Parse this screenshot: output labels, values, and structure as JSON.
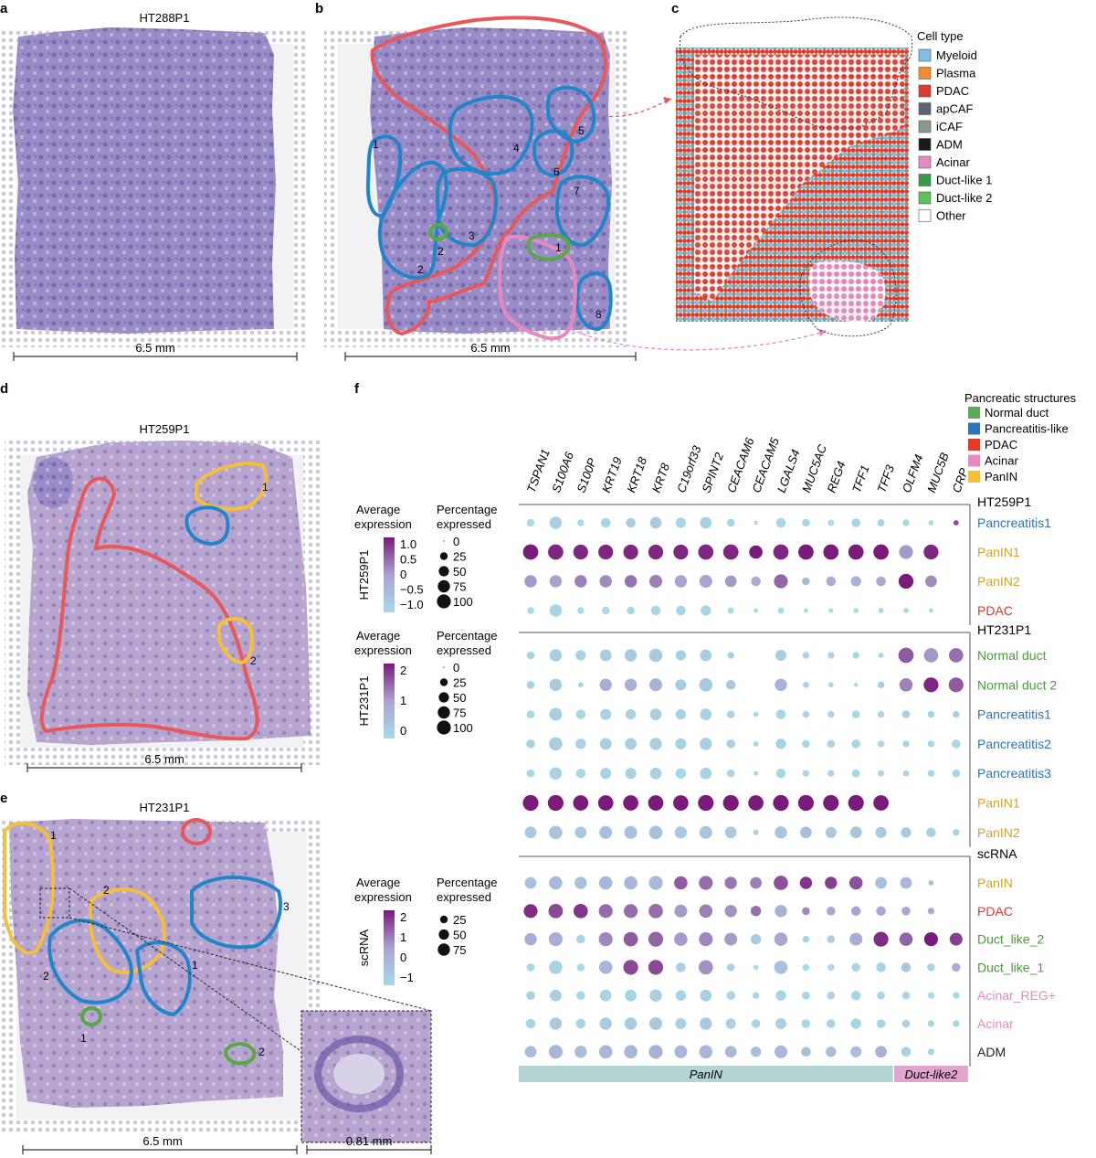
{
  "panels": {
    "a": {
      "letter": "a",
      "title": "HT288P1",
      "scale": "6.5 mm"
    },
    "b": {
      "letter": "b",
      "scale": "6.5 mm",
      "region_numbers": [
        "1",
        "2",
        "3",
        "4",
        "5",
        "6",
        "7",
        "8"
      ],
      "green_numbers": [
        "2",
        "1"
      ]
    },
    "c": {
      "letter": "c",
      "legend_title": "Cell type",
      "legend": [
        {
          "label": "Myeloid",
          "color": "#7fbfe3"
        },
        {
          "label": "Plasma",
          "color": "#f28a2e"
        },
        {
          "label": "PDAC",
          "color": "#e03a2a"
        },
        {
          "label": "apCAF",
          "color": "#5b6374"
        },
        {
          "label": "iCAF",
          "color": "#8a9a8a"
        },
        {
          "label": "ADM",
          "color": "#1a1a1a"
        },
        {
          "label": "Acinar",
          "color": "#e48ac0"
        },
        {
          "label": "Duct-like 1",
          "color": "#3a9a4a"
        },
        {
          "label": "Duct-like 2",
          "color": "#5cc05c"
        },
        {
          "label": "Other",
          "color": "#ffffff"
        }
      ]
    },
    "d": {
      "letter": "d",
      "title": "HT259P1",
      "scale": "6.5 mm",
      "yellow_numbers": [
        "1",
        "2"
      ]
    },
    "e": {
      "letter": "e",
      "title": "HT231P1",
      "scale": "6.5 mm",
      "inset_scale": "0.81 mm",
      "yellow_numbers": [
        "1",
        "2"
      ],
      "blue_numbers": [
        "3",
        "2",
        "1"
      ],
      "green_numbers": [
        "1",
        "2"
      ]
    },
    "f": {
      "letter": "f"
    }
  },
  "structures_legend": {
    "title": "Pancreatic structures",
    "items": [
      {
        "label": "Normal duct",
        "color": "#5aa85a"
      },
      {
        "label": "Pancreatitis-like",
        "color": "#2e72b8"
      },
      {
        "label": "PDAC",
        "color": "#e03a2a"
      },
      {
        "label": "Acinar",
        "color": "#e48ac0"
      },
      {
        "label": "PanIN",
        "color": "#f5bf3a"
      }
    ]
  },
  "colors": {
    "red": "#e8585a",
    "blue": "#1f87c9",
    "yellow": "#f5bf3a",
    "green": "#5aa845",
    "pink": "#e48ac0",
    "tissue": "#9a8cc4",
    "tissue_dark": "#5a4a9a",
    "bg_dot": "#c5c5d2",
    "low": "#a6dbe8",
    "high": "#7a1a7a"
  },
  "chart_data": {
    "type": "dotplot",
    "genes": [
      "TSPAN1",
      "S100A6",
      "S100P",
      "KRT19",
      "KRT18",
      "KRT8",
      "C19orf33",
      "SPINT2",
      "CEACAM6",
      "CEACAM5",
      "LGALS4",
      "MUC5AC",
      "REG4",
      "TFF1",
      "TFF3",
      "OLFM4",
      "MUC5B",
      "CRP"
    ],
    "gene_groups": [
      {
        "label": "PanIN",
        "from": 0,
        "to": 14,
        "color": "#b3d4d2"
      },
      {
        "label": "Duct-like2",
        "from": 15,
        "to": 17,
        "color": "#e0a6cf"
      }
    ],
    "blocks": [
      {
        "name": "HT259P1",
        "color_title": "Average expression",
        "size_title": "Percentage expressed",
        "side_label": "HT259P1",
        "color_ticks": [
          "1.0",
          "0.5",
          "0",
          "−0.5",
          "−1.0"
        ],
        "size_ticks": [
          "0",
          "25",
          "50",
          "75",
          "100"
        ],
        "rows": [
          {
            "label": "Pancreatitis1",
            "color": "#2e72b8",
            "expr": [
              -1,
              -0.8,
              -1,
              -0.9,
              -0.8,
              -0.7,
              -0.9,
              -0.8,
              -0.9,
              -1,
              -0.9,
              -0.9,
              -1,
              -0.9,
              -0.9,
              -1,
              -1,
              0.8
            ],
            "pct": [
              15,
              45,
              10,
              25,
              25,
              40,
              30,
              40,
              15,
              2,
              25,
              15,
              8,
              20,
              12,
              10,
              5,
              5
            ]
          },
          {
            "label": "PanIN1",
            "color": "#d4a42a",
            "expr": [
              1.2,
              1.1,
              1.1,
              1.1,
              1.1,
              1.1,
              1.1,
              1.1,
              1.1,
              1.2,
              1.1,
              1.2,
              1.2,
              1.2,
              1.2,
              0.2,
              1.1,
              null
            ],
            "pct": [
              75,
              75,
              70,
              70,
              70,
              70,
              70,
              75,
              75,
              55,
              75,
              75,
              75,
              75,
              75,
              60,
              70,
              0
            ]
          },
          {
            "label": "PanIN2",
            "color": "#d4a42a",
            "expr": [
              0.2,
              0.1,
              0.4,
              0.3,
              0.5,
              0.4,
              0.1,
              0.1,
              0.2,
              -0.1,
              0.6,
              -0.3,
              -0.1,
              -0.2,
              0,
              1.2,
              0.3,
              null
            ],
            "pct": [
              45,
              45,
              45,
              45,
              45,
              50,
              45,
              50,
              40,
              25,
              60,
              15,
              25,
              30,
              25,
              70,
              40,
              0
            ]
          },
          {
            "label": "PDAC",
            "color": "#e03a2a",
            "expr": [
              -1,
              -0.9,
              -1,
              -1,
              -0.9,
              -0.9,
              -0.9,
              -0.9,
              -1,
              -1,
              -1,
              -1,
              -1,
              -1,
              -1,
              -1,
              -1,
              null
            ],
            "pct": [
              10,
              45,
              10,
              15,
              15,
              25,
              25,
              30,
              8,
              3,
              8,
              3,
              3,
              5,
              5,
              5,
              3,
              0
            ]
          }
        ]
      },
      {
        "name": "HT231P1",
        "color_title": "Average expression",
        "size_title": "Percentage expressed",
        "side_label": "HT231P1",
        "color_ticks": [
          "2",
          "1",
          "0"
        ],
        "size_ticks": [
          "0",
          "25",
          "50",
          "75",
          "100"
        ],
        "rows": [
          {
            "label": "Normal duct",
            "color": "#4a9a3a",
            "expr": [
              -0.2,
              -0.1,
              -0.2,
              -0.1,
              0,
              0,
              -0.2,
              -0.1,
              -0.2,
              -0.3,
              -0.1,
              -0.3,
              -0.3,
              -0.3,
              -0.3,
              1.6,
              1,
              1.4
            ],
            "pct": [
              15,
              45,
              30,
              40,
              45,
              55,
              30,
              40,
              10,
              0,
              35,
              10,
              10,
              10,
              5,
              75,
              65,
              65
            ]
          },
          {
            "label": "Normal duct 2",
            "color": "#4a9a3a",
            "expr": [
              -0.2,
              0,
              -0.2,
              0.7,
              0.6,
              0.5,
              0,
              0,
              0,
              -0.3,
              0.5,
              -0.3,
              -0.3,
              -0.3,
              -0.1,
              1.2,
              2.1,
              1.6
            ],
            "pct": [
              15,
              45,
              5,
              45,
              45,
              50,
              35,
              55,
              25,
              0,
              45,
              8,
              5,
              2,
              10,
              55,
              70,
              70
            ]
          },
          {
            "label": "Pancreatitis1",
            "color": "#2e72b8",
            "expr": [
              -0.3,
              -0.1,
              -0.3,
              -0.2,
              -0.2,
              -0.1,
              -0.2,
              -0.2,
              -0.3,
              -0.3,
              -0.3,
              -0.3,
              -0.3,
              -0.3,
              -0.3,
              -0.2,
              -0.2,
              -0.2
            ],
            "pct": [
              15,
              50,
              25,
              35,
              30,
              40,
              30,
              40,
              15,
              5,
              25,
              10,
              10,
              15,
              10,
              15,
              10,
              10
            ]
          },
          {
            "label": "Pancreatitis2",
            "color": "#2e72b8",
            "expr": [
              -0.2,
              -0.1,
              -0.2,
              -0.1,
              -0.1,
              -0.1,
              -0.2,
              -0.1,
              -0.2,
              -0.3,
              -0.2,
              -0.3,
              -0.3,
              -0.3,
              -0.3,
              -0.3,
              -0.3,
              -0.3
            ],
            "pct": [
              20,
              55,
              30,
              40,
              40,
              45,
              35,
              45,
              20,
              5,
              30,
              15,
              15,
              20,
              10,
              10,
              10,
              20
            ]
          },
          {
            "label": "Pancreatitis3",
            "color": "#2e72b8",
            "expr": [
              -0.3,
              -0.2,
              -0.3,
              -0.2,
              -0.2,
              -0.2,
              -0.3,
              -0.2,
              -0.3,
              -0.3,
              -0.3,
              -0.3,
              -0.3,
              -0.3,
              -0.3,
              -0.3,
              -0.3,
              -0.3
            ],
            "pct": [
              15,
              45,
              25,
              35,
              35,
              40,
              30,
              40,
              15,
              3,
              25,
              10,
              10,
              15,
              8,
              8,
              10,
              15
            ]
          },
          {
            "label": "PanIN1",
            "color": "#d4a42a",
            "expr": [
              2.2,
              2.2,
              2.2,
              2.2,
              2.2,
              2.2,
              2.2,
              2.2,
              2.2,
              2.2,
              2.2,
              2.2,
              2.2,
              2.2,
              2.2,
              null,
              null,
              null
            ],
            "pct": [
              80,
              80,
              75,
              75,
              75,
              75,
              75,
              80,
              80,
              75,
              80,
              80,
              80,
              80,
              75,
              0,
              0,
              0
            ]
          },
          {
            "label": "PanIN2",
            "color": "#d4a42a",
            "expr": [
              0,
              0.1,
              0,
              0.2,
              0.2,
              0.2,
              0,
              0.1,
              0,
              -0.2,
              0.1,
              0.2,
              0,
              0.1,
              0,
              0,
              -0.1,
              -0.2
            ],
            "pct": [
              40,
              55,
              40,
              50,
              50,
              55,
              45,
              50,
              40,
              5,
              45,
              40,
              35,
              40,
              35,
              30,
              25,
              10
            ]
          }
        ]
      },
      {
        "name": "scRNA",
        "color_title": "Average expression",
        "size_title": "Percentage expressed",
        "side_label": "scRNA",
        "color_ticks": [
          "2",
          "1",
          "0",
          "−1"
        ],
        "size_ticks": [
          "25",
          "50",
          "75"
        ],
        "rows": [
          {
            "label": "PanIN",
            "color": "#d4a42a",
            "expr": [
              -0.3,
              -0.1,
              -0.3,
              0,
              0,
              -0.1,
              1.3,
              1.1,
              1,
              0.9,
              1.4,
              1.7,
              1.6,
              1.4,
              -0.3,
              0,
              -0.3,
              null
            ],
            "pct": [
              40,
              55,
              45,
              55,
              55,
              60,
              55,
              60,
              45,
              40,
              65,
              45,
              45,
              55,
              40,
              40,
              5,
              0
            ]
          },
          {
            "label": "PDAC",
            "color": "#e03a2a",
            "expr": [
              1.8,
              1.5,
              1.7,
              1.1,
              1.1,
              1.1,
              0.6,
              0.9,
              0.7,
              1.1,
              0.1,
              0.8,
              0.4,
              0.5,
              0.3,
              0.3,
              0.2,
              null
            ],
            "pct": [
              60,
              65,
              65,
              60,
              60,
              65,
              50,
              55,
              45,
              30,
              45,
              15,
              20,
              25,
              25,
              20,
              10,
              0
            ]
          },
          {
            "label": "Duct_like_2",
            "color": "#4a9a3a",
            "expr": [
              0.2,
              0.2,
              -0.8,
              0.8,
              1.3,
              1.2,
              0.6,
              0.8,
              0.6,
              -0.6,
              0.4,
              -0.7,
              -0.7,
              0.2,
              1.8,
              1.2,
              2.0,
              1.6
            ],
            "pct": [
              45,
              60,
              20,
              60,
              65,
              70,
              55,
              60,
              50,
              30,
              55,
              10,
              15,
              50,
              70,
              55,
              60,
              50
            ]
          },
          {
            "label": "Duct_like_1",
            "color": "#4a9a3a",
            "expr": [
              -0.9,
              -0.8,
              -1,
              0,
              1.5,
              1.5,
              -0.7,
              0.7,
              -0.8,
              -1,
              -0.3,
              -1,
              -1,
              -0.9,
              -0.8,
              -0.4,
              -0.8,
              0.2
            ],
            "pct": [
              15,
              55,
              15,
              55,
              70,
              70,
              25,
              65,
              15,
              5,
              55,
              10,
              10,
              20,
              25,
              25,
              15,
              20
            ]
          },
          {
            "label": "Acinar_REG+",
            "color": "#e48ac0",
            "expr": [
              -0.8,
              -0.7,
              -0.9,
              -0.8,
              -0.8,
              -0.7,
              -0.8,
              -0.7,
              -0.9,
              -0.9,
              -0.8,
              -0.9,
              -0.9,
              -0.9,
              -0.9,
              -0.9,
              -1,
              -1
            ],
            "pct": [
              20,
              40,
              20,
              40,
              40,
              45,
              30,
              40,
              20,
              10,
              30,
              15,
              15,
              25,
              15,
              15,
              10,
              10
            ]
          },
          {
            "label": "Acinar",
            "color": "#e48ac0",
            "expr": [
              -0.8,
              -0.6,
              -0.8,
              -0.6,
              -0.6,
              -0.5,
              -0.7,
              -0.6,
              -0.8,
              -0.8,
              -0.7,
              -0.9,
              -0.8,
              -0.8,
              -0.8,
              -0.8,
              -0.9,
              -0.9
            ],
            "pct": [
              25,
              45,
              25,
              45,
              45,
              50,
              35,
              45,
              30,
              20,
              35,
              20,
              20,
              30,
              20,
              15,
              10,
              10
            ]
          },
          {
            "label": "ADM",
            "color": "#222222",
            "expr": [
              -0.2,
              0,
              -0.2,
              0,
              0,
              0.1,
              0,
              0,
              -0.1,
              -0.2,
              -0.1,
              -0.3,
              -0.2,
              -0.2,
              0.1,
              -0.7,
              -0.9,
              null
            ],
            "pct": [
              40,
              60,
              45,
              55,
              55,
              60,
              50,
              55,
              40,
              30,
              50,
              25,
              30,
              35,
              40,
              25,
              10,
              0
            ]
          }
        ]
      }
    ]
  }
}
